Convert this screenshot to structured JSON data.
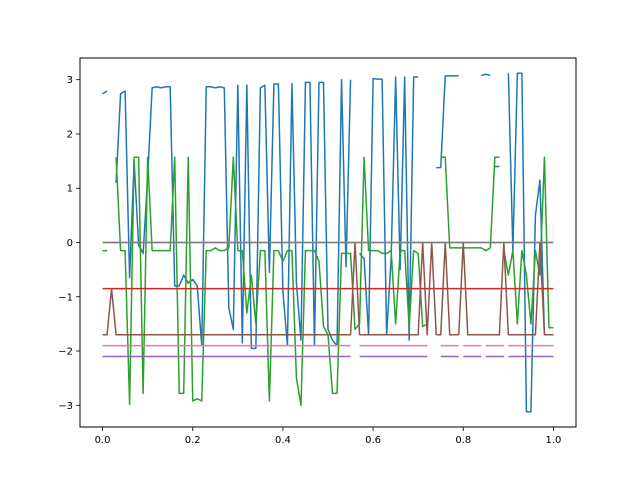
{
  "chart_data": {
    "type": "line",
    "title": "",
    "xlabel": "",
    "ylabel": "",
    "xlim": [
      -0.05,
      1.05
    ],
    "ylim": [
      -3.4,
      3.4
    ],
    "grid": false,
    "legend": "none",
    "xticks": [
      {
        "value": 0.0,
        "label": "0.0"
      },
      {
        "value": 0.2,
        "label": "0.2"
      },
      {
        "value": 0.4,
        "label": "0.4"
      },
      {
        "value": 0.6,
        "label": "0.6"
      },
      {
        "value": 0.8,
        "label": "0.8"
      },
      {
        "value": 1.0,
        "label": "1.0"
      }
    ],
    "yticks": [
      {
        "value": -3,
        "label": "−3"
      },
      {
        "value": -2,
        "label": "−2"
      },
      {
        "value": -1,
        "label": "−1"
      },
      {
        "value": 0,
        "label": "0"
      },
      {
        "value": 1,
        "label": "1"
      },
      {
        "value": 2,
        "label": "2"
      },
      {
        "value": 3,
        "label": "3"
      }
    ],
    "series": [
      {
        "color": "#1f77b4",
        "points": [
          [
            0.0,
            2.74
          ],
          [
            0.01,
            2.79
          ],
          null,
          [
            0.03,
            1.1
          ],
          [
            0.04,
            2.74
          ],
          [
            0.05,
            2.79
          ],
          [
            0.06,
            -0.65
          ],
          [
            0.07,
            1.5
          ],
          [
            0.08,
            -0.05
          ],
          [
            0.09,
            -0.2
          ],
          [
            0.1,
            1.2
          ],
          [
            0.11,
            2.85
          ],
          [
            0.12,
            2.87
          ],
          [
            0.13,
            2.85
          ],
          [
            0.14,
            2.87
          ],
          [
            0.15,
            2.87
          ],
          [
            0.16,
            -0.8
          ],
          [
            0.17,
            -0.8
          ],
          [
            0.18,
            -0.6
          ],
          [
            0.19,
            -0.75
          ],
          [
            0.2,
            -0.68
          ],
          [
            0.21,
            -0.8
          ],
          [
            0.22,
            -1.9
          ],
          [
            0.23,
            2.87
          ],
          [
            0.24,
            2.87
          ],
          [
            0.25,
            2.85
          ],
          [
            0.26,
            2.87
          ],
          [
            0.27,
            2.85
          ],
          [
            0.28,
            -1.2
          ],
          [
            0.29,
            -1.6
          ],
          [
            0.3,
            2.9
          ],
          [
            0.31,
            -1.85
          ],
          [
            0.32,
            2.9
          ],
          [
            0.33,
            -1.95
          ],
          [
            0.34,
            -1.95
          ],
          [
            0.35,
            2.85
          ],
          [
            0.36,
            2.9
          ],
          [
            0.37,
            -0.55
          ],
          [
            0.38,
            2.92
          ],
          [
            0.39,
            2.92
          ],
          [
            0.4,
            -0.9
          ],
          [
            0.41,
            -1.9
          ],
          [
            0.42,
            2.93
          ],
          [
            0.43,
            -0.75
          ],
          [
            0.44,
            -1.8
          ],
          [
            0.45,
            2.95
          ],
          [
            0.46,
            2.95
          ],
          [
            0.47,
            -1.9
          ],
          [
            0.48,
            2.95
          ],
          [
            0.49,
            2.95
          ],
          [
            0.5,
            -1.6
          ],
          [
            0.51,
            -1.8
          ],
          [
            0.52,
            -1.9
          ],
          [
            0.53,
            3.0
          ],
          [
            0.54,
            -0.45
          ],
          [
            0.55,
            3.0
          ],
          null,
          [
            0.57,
            -0.2
          ],
          [
            0.58,
            -0.3
          ],
          [
            0.59,
            -1.7
          ],
          [
            0.6,
            3.02
          ],
          [
            0.61,
            3.01
          ],
          [
            0.62,
            3.01
          ],
          [
            0.63,
            -1.7
          ],
          [
            0.64,
            -0.3
          ],
          [
            0.65,
            3.05
          ],
          [
            0.66,
            -0.5
          ],
          [
            0.67,
            3.05
          ],
          [
            0.68,
            -1.8
          ],
          [
            0.69,
            3.05
          ],
          [
            0.7,
            3.05
          ],
          null,
          [
            0.74,
            1.38
          ],
          [
            0.75,
            1.38
          ],
          [
            0.76,
            3.07
          ],
          [
            0.77,
            3.07
          ],
          [
            0.78,
            3.07
          ],
          [
            0.79,
            3.07
          ],
          null,
          [
            0.84,
            3.08
          ],
          [
            0.85,
            3.1
          ],
          [
            0.86,
            3.08
          ],
          null,
          [
            0.87,
            1.4
          ],
          [
            0.88,
            1.4
          ],
          null,
          [
            0.9,
            3.12
          ],
          [
            0.91,
            -0.15
          ],
          [
            0.92,
            3.12
          ],
          [
            0.93,
            3.12
          ],
          [
            0.94,
            -3.12
          ],
          [
            0.95,
            -3.12
          ],
          [
            0.96,
            0.5
          ],
          [
            0.97,
            1.15
          ],
          [
            0.98,
            -1.7
          ],
          [
            0.99,
            -1.7
          ],
          [
            1.0,
            -1.7
          ]
        ]
      },
      {
        "color": "#ff7f0e",
        "points": [
          [
            0.0,
            0.0
          ],
          [
            1.0,
            0.0
          ]
        ]
      },
      {
        "color": "#2ca02c",
        "points": [
          [
            0.0,
            -0.15
          ],
          [
            0.01,
            -0.15
          ],
          null,
          [
            0.03,
            1.57
          ],
          [
            0.04,
            -0.15
          ],
          [
            0.05,
            -0.15
          ],
          [
            0.06,
            -2.98
          ],
          [
            0.07,
            1.57
          ],
          [
            0.08,
            1.57
          ],
          [
            0.09,
            -2.78
          ],
          [
            0.1,
            1.57
          ],
          [
            0.11,
            -0.15
          ],
          [
            0.12,
            -0.15
          ],
          [
            0.13,
            -0.15
          ],
          [
            0.14,
            -0.15
          ],
          [
            0.15,
            -0.15
          ],
          [
            0.16,
            1.57
          ],
          [
            0.17,
            -2.78
          ],
          [
            0.18,
            -2.78
          ],
          [
            0.19,
            1.57
          ],
          [
            0.2,
            -2.92
          ],
          [
            0.21,
            -2.88
          ],
          [
            0.22,
            -2.92
          ],
          [
            0.23,
            -0.15
          ],
          [
            0.24,
            -0.15
          ],
          [
            0.25,
            -0.1
          ],
          [
            0.26,
            -0.15
          ],
          [
            0.27,
            -0.15
          ],
          [
            0.28,
            -0.1
          ],
          [
            0.29,
            1.57
          ],
          [
            0.3,
            -0.15
          ],
          [
            0.31,
            -0.15
          ],
          [
            0.32,
            -1.3
          ],
          [
            0.33,
            -0.6
          ],
          [
            0.34,
            -1.5
          ],
          [
            0.35,
            -0.15
          ],
          [
            0.36,
            -0.15
          ],
          [
            0.37,
            -2.92
          ],
          [
            0.38,
            -0.15
          ],
          [
            0.39,
            -0.15
          ],
          [
            0.4,
            -0.35
          ],
          [
            0.41,
            -0.15
          ],
          [
            0.42,
            -0.15
          ],
          [
            0.43,
            -2.5
          ],
          [
            0.44,
            -3.0
          ],
          [
            0.45,
            -0.15
          ],
          [
            0.46,
            -0.15
          ],
          [
            0.47,
            -0.15
          ],
          [
            0.48,
            -0.35
          ],
          [
            0.49,
            -1.55
          ],
          [
            0.5,
            -1.7
          ],
          [
            0.51,
            -2.78
          ],
          [
            0.52,
            -2.78
          ],
          [
            0.53,
            -0.2
          ],
          [
            0.54,
            -0.2
          ],
          [
            0.55,
            -0.2
          ],
          [
            0.56,
            -1.6
          ],
          [
            0.57,
            -1.5
          ],
          [
            0.58,
            1.57
          ],
          [
            0.59,
            -0.15
          ],
          [
            0.6,
            -0.15
          ],
          [
            0.61,
            -0.15
          ],
          [
            0.62,
            -0.2
          ],
          [
            0.63,
            -0.2
          ],
          [
            0.64,
            -0.15
          ],
          [
            0.65,
            -1.5
          ],
          [
            0.66,
            -0.15
          ],
          [
            0.67,
            -0.15
          ],
          [
            0.68,
            -1.55
          ],
          [
            0.69,
            -0.15
          ],
          [
            0.7,
            -0.2
          ],
          [
            0.71,
            -1.55
          ],
          [
            0.72,
            -1.5
          ],
          null,
          [
            0.75,
            1.57
          ],
          [
            0.76,
            1.57
          ],
          [
            0.77,
            -0.1
          ],
          [
            0.78,
            -0.1
          ],
          [
            0.79,
            -0.1
          ],
          [
            0.8,
            -0.1
          ],
          [
            0.81,
            -0.1
          ],
          [
            0.82,
            -0.1
          ],
          [
            0.83,
            -0.1
          ],
          [
            0.84,
            -0.1
          ],
          [
            0.85,
            -0.15
          ],
          [
            0.86,
            -0.1
          ],
          [
            0.87,
            1.57
          ],
          [
            0.88,
            1.57
          ],
          null,
          [
            0.89,
            -0.15
          ],
          [
            0.9,
            -0.6
          ],
          [
            0.91,
            -0.15
          ],
          [
            0.92,
            -1.5
          ],
          [
            0.93,
            -0.15
          ],
          [
            0.94,
            -0.6
          ],
          [
            0.95,
            -1.5
          ],
          [
            0.96,
            -0.15
          ],
          [
            0.97,
            -0.6
          ],
          [
            0.98,
            1.57
          ],
          [
            0.99,
            -1.57
          ],
          [
            1.0,
            -1.57
          ]
        ]
      },
      {
        "color": "#d62728",
        "points": [
          [
            0.0,
            -0.85
          ],
          [
            1.0,
            -0.85
          ]
        ]
      },
      {
        "color": "#9467bd",
        "points": [
          [
            0.0,
            -2.1
          ],
          [
            0.55,
            -2.1
          ],
          null,
          [
            0.57,
            -2.1
          ],
          [
            0.72,
            -2.1
          ],
          null,
          [
            0.75,
            -2.1
          ],
          [
            0.79,
            -2.1
          ],
          null,
          [
            0.8,
            -2.1
          ],
          [
            0.84,
            -2.1
          ],
          null,
          [
            0.85,
            -2.1
          ],
          [
            0.89,
            -2.1
          ],
          null,
          [
            0.9,
            -2.1
          ],
          [
            1.0,
            -2.1
          ]
        ]
      },
      {
        "color": "#8c564b",
        "points": [
          [
            0.0,
            -1.7
          ],
          [
            0.01,
            -1.7
          ],
          [
            0.02,
            -0.85
          ],
          [
            0.03,
            -1.7
          ],
          [
            0.04,
            -1.7
          ],
          [
            0.05,
            -1.7
          ],
          [
            0.1,
            -1.7
          ],
          [
            0.15,
            -1.7
          ],
          [
            0.2,
            -1.7
          ],
          [
            0.25,
            -1.7
          ],
          [
            0.3,
            -1.7
          ],
          [
            0.35,
            -1.7
          ],
          [
            0.4,
            -1.7
          ],
          [
            0.45,
            -1.7
          ],
          [
            0.5,
            -1.7
          ],
          [
            0.55,
            -1.7
          ],
          [
            0.56,
            0.0
          ],
          [
            0.57,
            -1.7
          ],
          [
            0.6,
            -1.7
          ],
          [
            0.65,
            -1.7
          ],
          [
            0.7,
            -1.7
          ],
          [
            0.71,
            0.0
          ],
          [
            0.72,
            -1.7
          ],
          [
            0.73,
            0.0
          ],
          [
            0.74,
            -1.7
          ],
          [
            0.75,
            -1.7
          ],
          [
            0.76,
            0.0
          ],
          [
            0.77,
            -1.7
          ],
          [
            0.78,
            -1.7
          ],
          [
            0.79,
            -1.7
          ],
          [
            0.8,
            0.0
          ],
          [
            0.81,
            -1.7
          ],
          [
            0.82,
            -1.7
          ],
          [
            0.83,
            -1.7
          ],
          [
            0.84,
            -1.7
          ],
          [
            0.85,
            -1.7
          ],
          [
            0.86,
            -1.7
          ],
          [
            0.87,
            -1.7
          ],
          [
            0.88,
            -1.7
          ],
          [
            0.89,
            0.0
          ],
          [
            0.9,
            -1.7
          ],
          [
            0.95,
            -1.7
          ],
          [
            0.96,
            -1.7
          ],
          [
            0.97,
            0.0
          ],
          [
            0.98,
            -1.7
          ],
          [
            1.0,
            -1.7
          ]
        ]
      },
      {
        "color": "#e377c2",
        "points": [
          [
            0.0,
            -1.9
          ],
          [
            0.55,
            -1.9
          ],
          null,
          [
            0.57,
            -1.9
          ],
          [
            0.72,
            -1.9
          ],
          null,
          [
            0.75,
            -1.9
          ],
          [
            0.79,
            -1.9
          ],
          null,
          [
            0.8,
            -1.9
          ],
          [
            0.84,
            -1.9
          ],
          null,
          [
            0.85,
            -1.9
          ],
          [
            0.89,
            -1.9
          ],
          null,
          [
            0.9,
            -1.9
          ],
          [
            1.0,
            -1.9
          ]
        ]
      },
      {
        "color": "#7f7f7f",
        "points": [
          [
            0.0,
            0.0
          ],
          [
            1.0,
            0.0
          ]
        ]
      }
    ]
  }
}
